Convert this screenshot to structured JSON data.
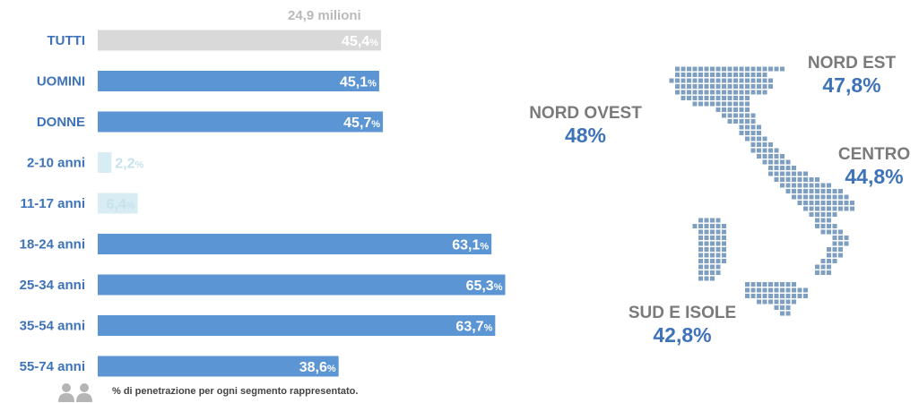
{
  "header": {
    "total_label": "24,9 milioni"
  },
  "chart_data": {
    "type": "bar",
    "orientation": "horizontal",
    "categories": [
      "TUTTI",
      "UOMINI",
      "DONNE",
      "2-10 anni",
      "11-17 anni",
      "18-24 anni",
      "25-34 anni",
      "35-54 anni",
      "55-74 anni"
    ],
    "values": [
      45.4,
      45.1,
      45.7,
      2.2,
      6.4,
      63.1,
      65.3,
      63.7,
      38.6
    ],
    "value_labels": [
      "45,4",
      "45,1",
      "45,7",
      "2,2",
      "6,4",
      "63,1",
      "65,3",
      "63,7",
      "38,6"
    ],
    "unit": "%",
    "colors": [
      "#d9d9d9",
      "#5b95d4",
      "#5b95d4",
      "#d7ecf3",
      "#d7ecf3",
      "#5b95d4",
      "#5b95d4",
      "#5b95d4",
      "#5b95d4"
    ],
    "label_colors": [
      "#ffffff",
      "#ffffff",
      "#ffffff",
      "#c7e2ec",
      "#c7e2ec",
      "#ffffff",
      "#ffffff",
      "#ffffff",
      "#ffffff"
    ],
    "xlim": [
      0,
      100
    ],
    "grid": false,
    "legend": "none"
  },
  "footnote": "% di penetrazione per ogni segmento rappresentato.",
  "icons": {
    "legend_icon": "people-icon",
    "map": "italy-map"
  },
  "map": {
    "dot_color": "#7e9fc2",
    "regions": [
      {
        "name": "NORD OVEST",
        "value": "48%"
      },
      {
        "name": "NORD EST",
        "value": "47,8%"
      },
      {
        "name": "CENTRO",
        "value": "44,8%"
      },
      {
        "name": "SUD E ISOLE",
        "value": "42,8%"
      }
    ]
  }
}
